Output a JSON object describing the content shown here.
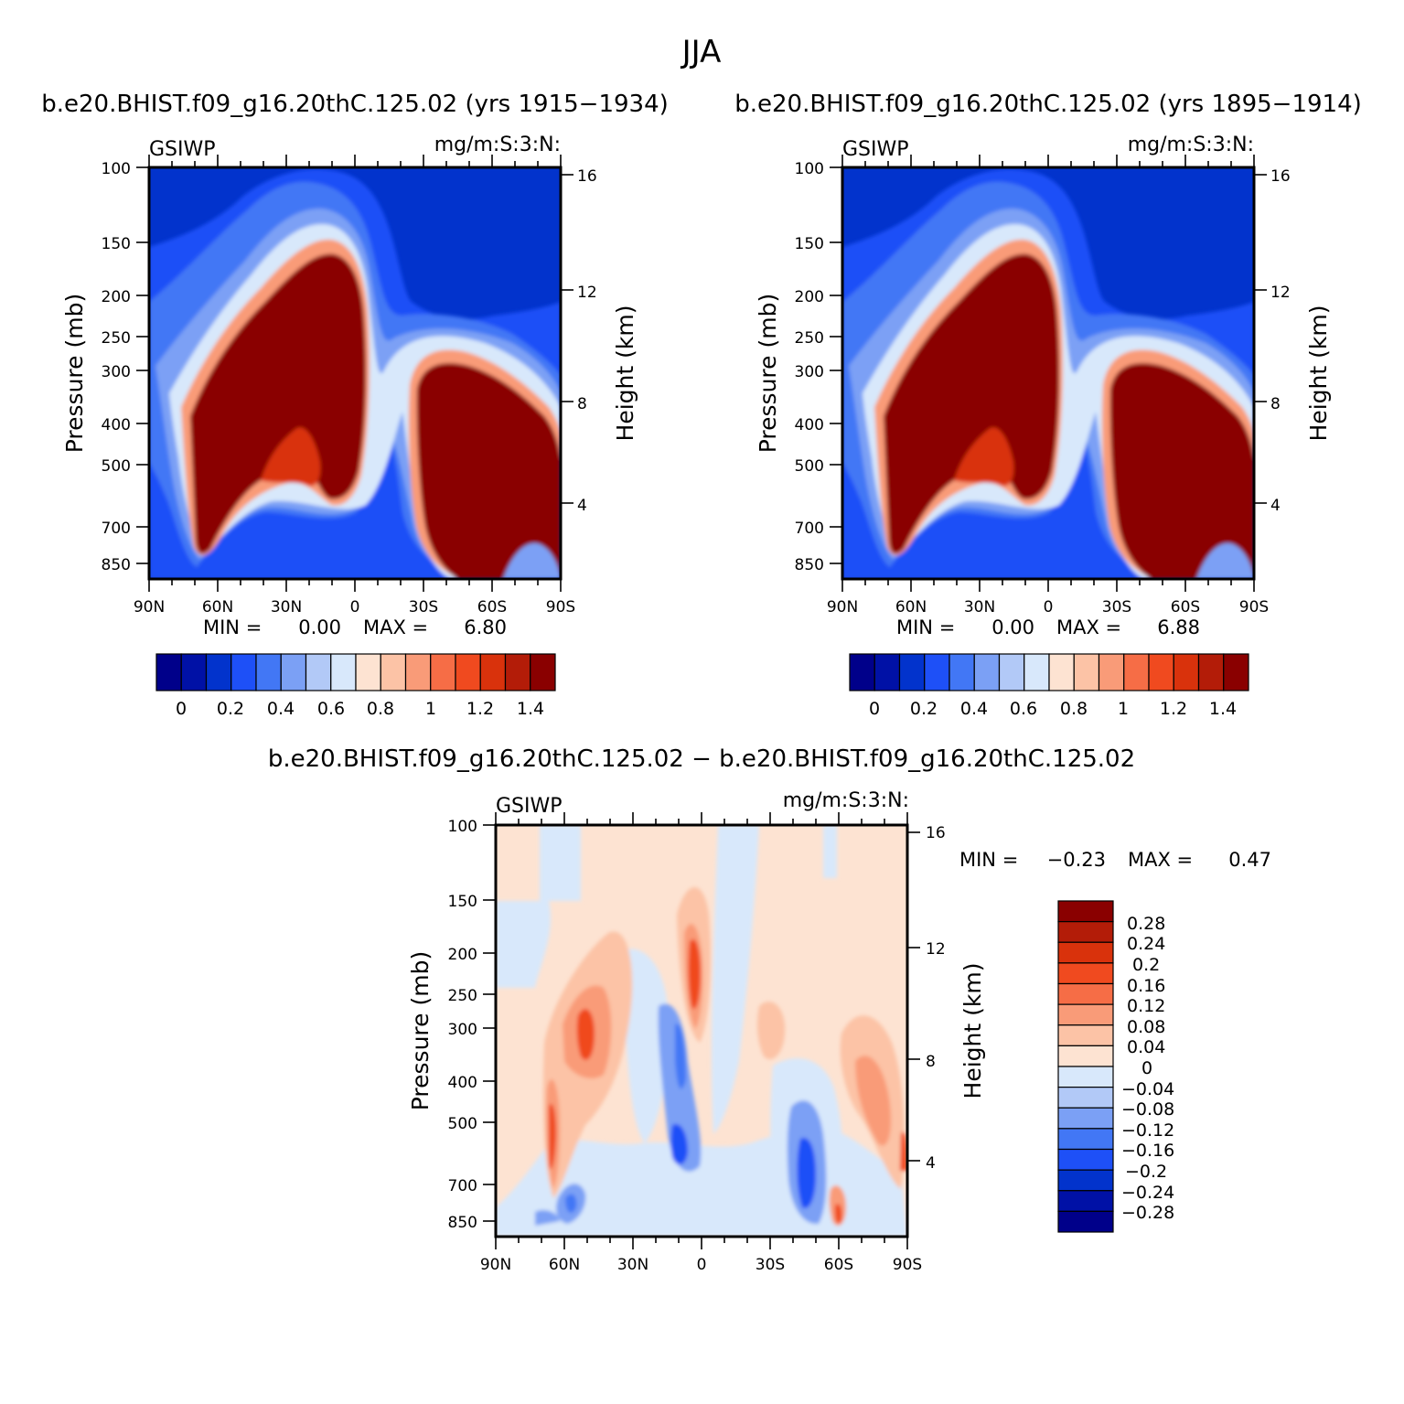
{
  "figure": {
    "title": "JJA",
    "season": "JJA"
  },
  "palettes": {
    "abs": [
      "#00008a",
      "#0011a6",
      "#0233cc",
      "#1e50f7",
      "#4277f5",
      "#7ba0f5",
      "#b2c9f7",
      "#d8e8fb",
      "#fde3d2",
      "#fcc3a6",
      "#f99b78",
      "#f66d46",
      "#f04a1f",
      "#d9320c",
      "#b31c08",
      "#8a0000"
    ],
    "diff": [
      "#8a0000",
      "#b31c08",
      "#d9320c",
      "#f04a1f",
      "#f66d46",
      "#f99b78",
      "#fcc3a6",
      "#fde3d2",
      "#d8e8fb",
      "#b2c9f7",
      "#7ba0f5",
      "#4277f5",
      "#1e50f7",
      "#0233cc",
      "#0011a6",
      "#00008a"
    ]
  },
  "chart_data": [
    {
      "type": "contour",
      "title": "b.e20.BHIST.f09_g16.20thC.125.02 (yrs 1915-1934)",
      "variable": "GSIWP",
      "units": "mg/m:S:3:N:",
      "xlabel": "",
      "ylabel": "Pressure (mb)",
      "y2label": "Height (km)",
      "x_ticks": [
        "90N",
        "60N",
        "30N",
        "0",
        "30S",
        "60S",
        "90S"
      ],
      "y_ticks": [
        "100",
        "150",
        "200",
        "250",
        "300",
        "400",
        "500",
        "700",
        "850"
      ],
      "y_ticks_values": [
        100,
        150,
        200,
        250,
        300,
        400,
        500,
        700,
        850
      ],
      "y2_ticks": [
        "4",
        "8",
        "12",
        "16"
      ],
      "y2_ticks_values": [
        4,
        8,
        12,
        16
      ],
      "min_label": "MIN =",
      "min": "0.00",
      "max_label": "MAX =",
      "max": "6.80",
      "colorbar": {
        "orientation": "horizontal",
        "labels": [
          "0",
          "0.2",
          "0.4",
          "0.6",
          "0.8",
          "1",
          "1.2",
          "1.4"
        ],
        "levels": [
          0,
          0.1,
          0.2,
          0.3,
          0.4,
          0.5,
          0.6,
          0.7,
          0.8,
          0.9,
          1.0,
          1.1,
          1.2,
          1.3,
          1.4
        ],
        "n_colors": 16
      }
    },
    {
      "type": "contour",
      "title": "b.e20.BHIST.f09_g16.20thC.125.02 (yrs 1895-1914)",
      "variable": "GSIWP",
      "units": "mg/m:S:3:N:",
      "xlabel": "",
      "ylabel": "Pressure (mb)",
      "y2label": "Height (km)",
      "x_ticks": [
        "90N",
        "60N",
        "30N",
        "0",
        "30S",
        "60S",
        "90S"
      ],
      "y_ticks": [
        "100",
        "150",
        "200",
        "250",
        "300",
        "400",
        "500",
        "700",
        "850"
      ],
      "y_ticks_values": [
        100,
        150,
        200,
        250,
        300,
        400,
        500,
        700,
        850
      ],
      "y2_ticks": [
        "4",
        "8",
        "12",
        "16"
      ],
      "y2_ticks_values": [
        4,
        8,
        12,
        16
      ],
      "min_label": "MIN =",
      "min": "0.00",
      "max_label": "MAX =",
      "max": "6.88",
      "colorbar": {
        "orientation": "horizontal",
        "labels": [
          "0",
          "0.2",
          "0.4",
          "0.6",
          "0.8",
          "1",
          "1.2",
          "1.4"
        ],
        "levels": [
          0,
          0.1,
          0.2,
          0.3,
          0.4,
          0.5,
          0.6,
          0.7,
          0.8,
          0.9,
          1.0,
          1.1,
          1.2,
          1.3,
          1.4
        ],
        "n_colors": 16
      }
    },
    {
      "type": "contour",
      "title": "b.e20.BHIST.f09_g16.20thC.125.02 - b.e20.BHIST.f09_g16.20thC.125.02",
      "variable": "GSIWP",
      "units": "mg/m:S:3:N:",
      "xlabel": "",
      "ylabel": "Pressure (mb)",
      "y2label": "Height (km)",
      "x_ticks": [
        "90N",
        "60N",
        "30N",
        "0",
        "30S",
        "60S",
        "90S"
      ],
      "y_ticks": [
        "100",
        "150",
        "200",
        "250",
        "300",
        "400",
        "500",
        "700",
        "850"
      ],
      "y_ticks_values": [
        100,
        150,
        200,
        250,
        300,
        400,
        500,
        700,
        850
      ],
      "y2_ticks": [
        "4",
        "8",
        "12",
        "16"
      ],
      "y2_ticks_values": [
        4,
        8,
        12,
        16
      ],
      "min_label": "MIN =",
      "min": "-0.23",
      "max_label": "MAX =",
      "max": "0.47",
      "colorbar": {
        "orientation": "vertical",
        "labels": [
          "0.28",
          "0.24",
          "0.2",
          "0.16",
          "0.12",
          "0.08",
          "0.04",
          "0",
          "-0.04",
          "-0.08",
          "-0.12",
          "-0.16",
          "-0.2",
          "-0.24",
          "-0.28"
        ],
        "n_colors": 16
      }
    }
  ]
}
